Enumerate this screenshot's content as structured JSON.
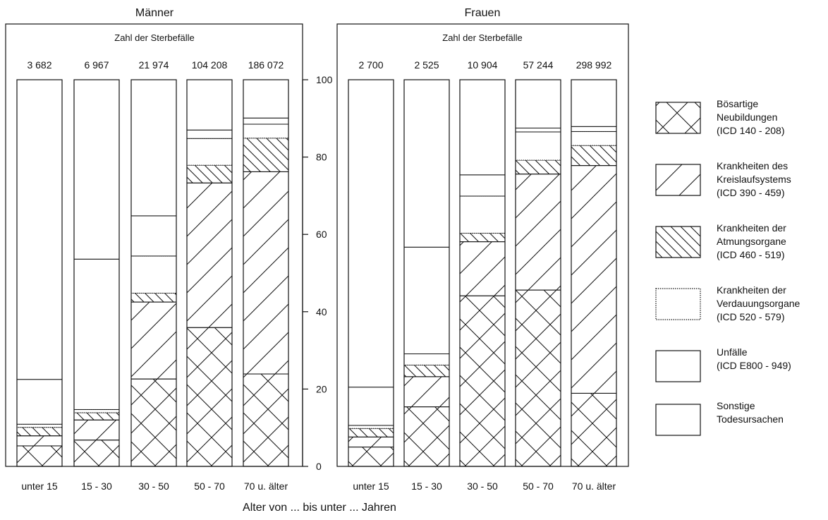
{
  "chart_data": {
    "type": "bar",
    "stacked": "percent",
    "xlabel": "Alter von ... bis unter ... Jahren",
    "y_ticks": [
      "0",
      "20",
      "40",
      "60",
      "80",
      "100"
    ],
    "ylim": [
      0,
      100
    ],
    "categories": [
      "unter 15",
      "15 - 30",
      "30 - 50",
      "50 - 70",
      "70 u. älter"
    ],
    "panels": [
      {
        "title": "Männer",
        "box_title": "Zahl der Sterbefälle",
        "totals": [
          "3 682",
          "6 967",
          "21 974",
          "104 208",
          "186 072"
        ],
        "series": [
          {
            "name": "Bösartige Neubildungen (ICD 140 - 208)",
            "values": [
              5.3,
              6.8,
              22.6,
              35.9,
              23.9
            ]
          },
          {
            "name": "Krankheiten des Kreislaufsystems (ICD 390 - 459)",
            "values": [
              2.6,
              5.2,
              19.9,
              37.4,
              52.3
            ]
          },
          {
            "name": "Krankheiten der Atmungsorgane (ICD 460 - 519)",
            "values": [
              2.2,
              1.9,
              2.3,
              4.6,
              8.7
            ]
          },
          {
            "name": "Krankheiten der Verdauungsorgane (ICD 520 - 579)",
            "values": [
              0.8,
              0.8,
              9.6,
              6.9,
              3.6
            ]
          },
          {
            "name": "Unfälle (ICD E800 - 949)",
            "values": [
              11.6,
              38.9,
              10.4,
              2.2,
              1.6
            ]
          },
          {
            "name": "Sonstige Todesursachen",
            "values": [
              77.5,
              46.4,
              35.2,
              13.0,
              9.9
            ]
          }
        ]
      },
      {
        "title": "Frauen",
        "box_title": "Zahl der Sterbefälle",
        "totals": [
          "2 700",
          "2 525",
          "10 904",
          "57 244",
          "298 992"
        ],
        "series": [
          {
            "name": "Bösartige Neubildungen (ICD 140 - 208)",
            "values": [
              5.0,
              15.4,
              44.1,
              45.6,
              18.9
            ]
          },
          {
            "name": "Krankheiten des Kreislaufsystems (ICD 390 - 459)",
            "values": [
              2.6,
              7.8,
              14.0,
              30.0,
              58.9
            ]
          },
          {
            "name": "Krankheiten der Atmungsorgane (ICD 460 - 519)",
            "values": [
              2.2,
              3.0,
              2.2,
              3.6,
              5.2
            ]
          },
          {
            "name": "Krankheiten der Verdauungsorgane (ICD 520 - 579)",
            "values": [
              0.8,
              2.9,
              9.6,
              7.3,
              3.6
            ]
          },
          {
            "name": "Unfälle (ICD E800 - 949)",
            "values": [
              9.9,
              27.6,
              5.5,
              1.0,
              1.3
            ]
          },
          {
            "name": "Sonstige Todesursachen",
            "values": [
              79.5,
              43.3,
              24.6,
              12.5,
              12.1
            ]
          }
        ]
      }
    ],
    "legend": {
      "placement": "right",
      "entries": [
        {
          "lines": [
            "Bösartige",
            "Neubildungen",
            "(ICD  140 - 208)"
          ],
          "pattern": "crosshatch"
        },
        {
          "lines": [
            "Krankheiten des",
            "Kreislaufsystems",
            "(ICD  390 - 459)"
          ],
          "pattern": "diag-up"
        },
        {
          "lines": [
            "Krankheiten der",
            "Atmungsorgane",
            "(ICD  460 - 519)"
          ],
          "pattern": "diag-down"
        },
        {
          "lines": [
            "Krankheiten der",
            "Verdauungsorgane",
            "(ICD  520 - 579)"
          ],
          "pattern": "dotted-border"
        },
        {
          "lines": [
            "Unfälle",
            "(ICD  E800 - 949)"
          ],
          "pattern": "plain"
        },
        {
          "lines": [
            "Sonstige",
            "Todesursachen"
          ],
          "pattern": "plain"
        }
      ]
    },
    "colors": {
      "ink": "#111111",
      "background": "#ffffff"
    }
  }
}
